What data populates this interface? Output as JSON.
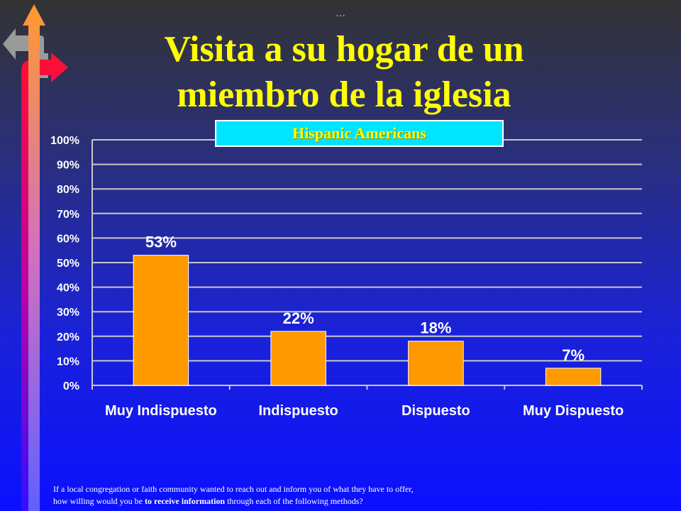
{
  "ellipsis": "…",
  "title_line1": "Visita a su hogar de un",
  "title_line2": "miembro de la iglesia",
  "colors": {
    "bar": "#ff9900",
    "bar_outline": "#ffffff",
    "grid": "#c8c8c8",
    "axis_text": "#ffffff",
    "title": "#ffff00",
    "subtitle_bg": "#00e5ff"
  },
  "footnote": {
    "line1": "If a local congregation or faith community wanted to reach out and inform you of what they have to offer,",
    "line2_pre": "how willing  would you be ",
    "line2_bold": "to receive information",
    "line2_post": " through each of the following methods?"
  },
  "chart_data": {
    "type": "bar",
    "title": "Hispanic Americans",
    "categories": [
      "Muy Indispuesto",
      "Indispuesto",
      "Dispuesto",
      "Muy Dispuesto"
    ],
    "values": [
      53,
      22,
      18,
      7
    ],
    "data_labels": [
      "53%",
      "22%",
      "18%",
      "7%"
    ],
    "ylim": [
      0,
      100
    ],
    "yticks": [
      0,
      10,
      20,
      30,
      40,
      50,
      60,
      70,
      80,
      90,
      100
    ],
    "ytick_labels": [
      "0%",
      "10%",
      "20%",
      "30%",
      "40%",
      "50%",
      "60%",
      "70%",
      "80%",
      "90%",
      "100%"
    ],
    "grid": true,
    "legend": "none"
  }
}
